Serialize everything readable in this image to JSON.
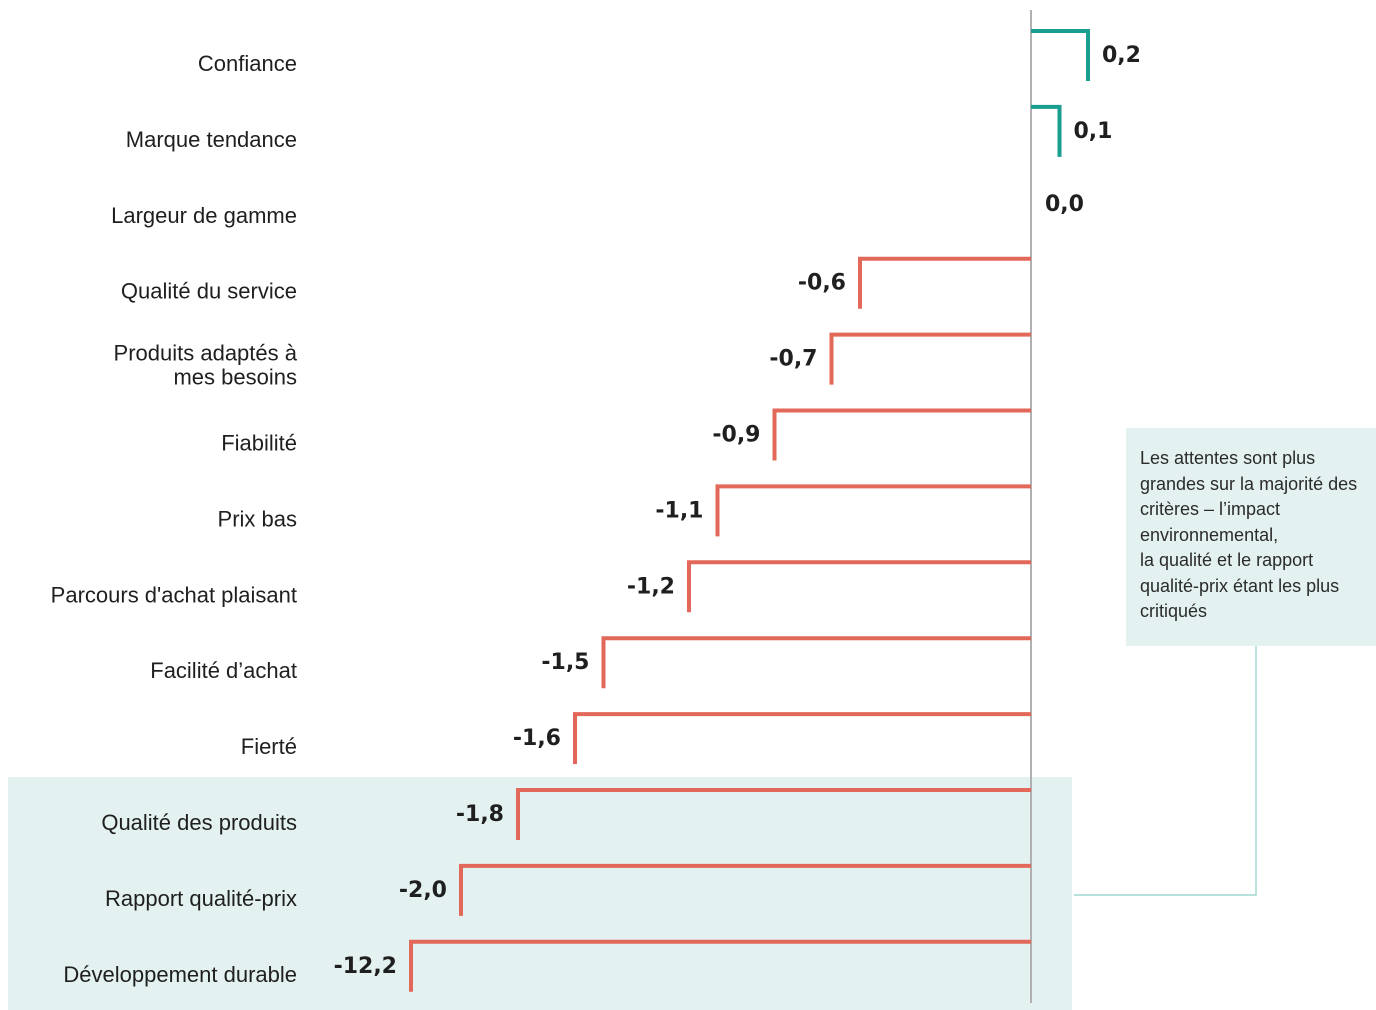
{
  "chart_data": {
    "type": "bar",
    "orientation": "horizontal",
    "categories": [
      "Confiance",
      "Marque tendance",
      "Largeur de gamme",
      "Qualité du service",
      "Produits adaptés à\nmes besoins",
      "Fiabilité",
      "Prix bas",
      "Parcours d'achat plaisant",
      "Facilité d’achat",
      "Fierté",
      "Qualité des produits",
      "Rapport qualité-prix",
      "Développement durable"
    ],
    "values": [
      0.2,
      0.1,
      0.0,
      -0.6,
      -0.7,
      -0.9,
      -1.1,
      -1.2,
      -1.5,
      -1.6,
      -1.8,
      -2.0,
      -12.2
    ],
    "value_labels": [
      "0,2",
      "0,1",
      "0,0",
      "-0,6",
      "-0,7",
      "-0,9",
      "-1,1",
      "-1,2",
      "-1,5",
      "-1,6",
      "-1,8",
      "-2,0",
      "-12,2"
    ],
    "highlighted_categories": [
      "Qualité des produits",
      "Rapport qualité-prix",
      "Développement durable"
    ],
    "positive_color": "#1a9e8f",
    "negative_color": "#e2685a",
    "axis_color": "#b0b0b0",
    "highlight_color": "#e3f1f0",
    "grid": false,
    "annotation": "Les attentes sont plus grandes sur la majorité des critères – l’impact environnemental,\nla qualité et le rapport qualité-prix étant les plus critiqués"
  }
}
